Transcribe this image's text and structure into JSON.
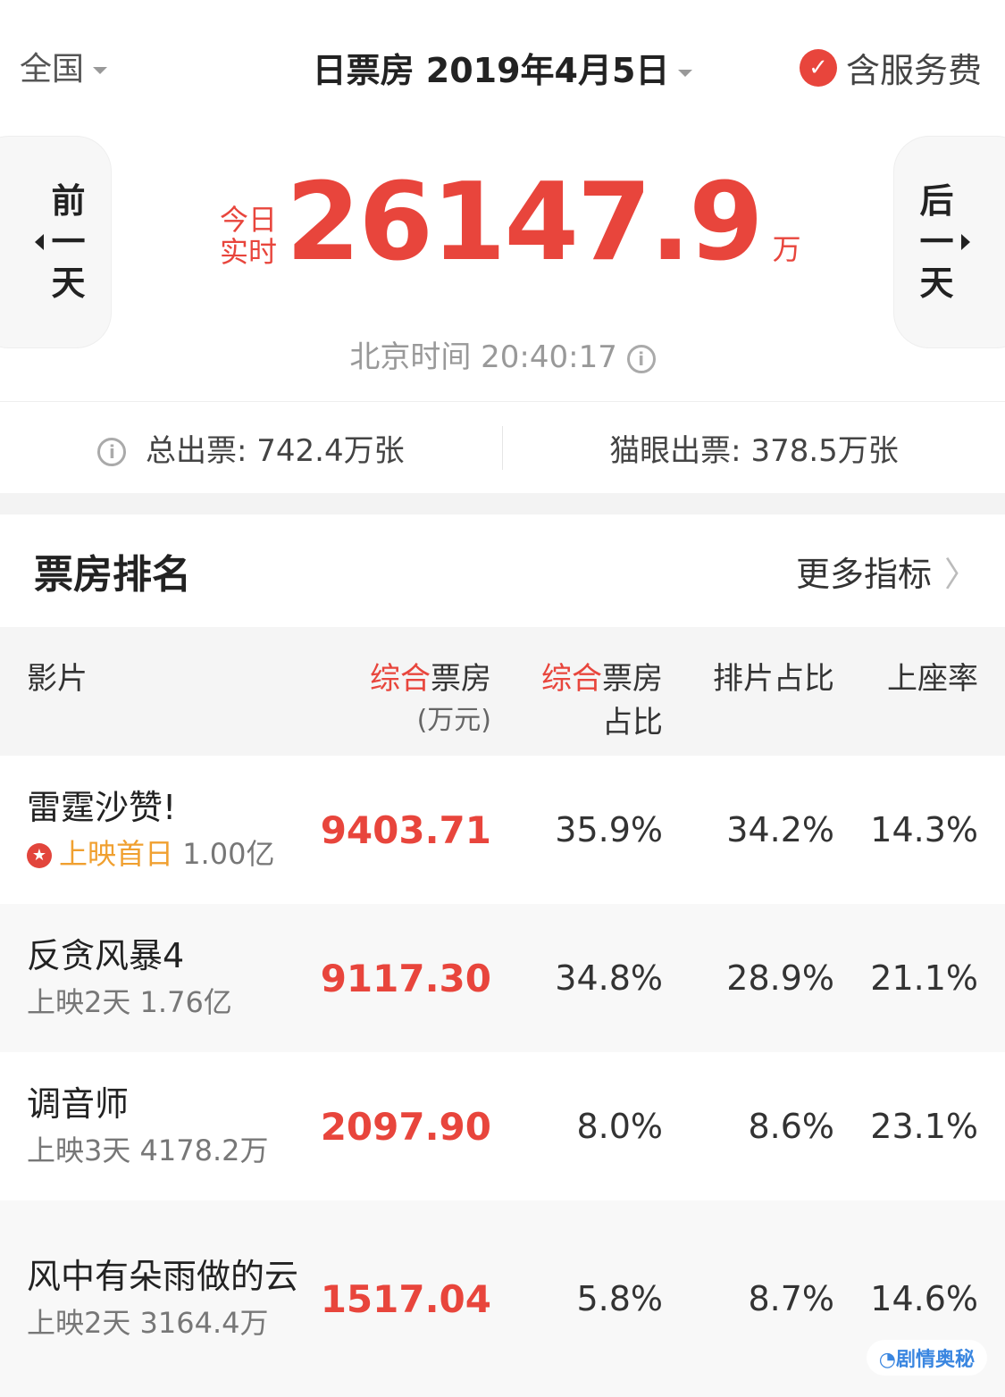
{
  "header": {
    "region": "全国",
    "date_title": "日票房 2019年4月5日",
    "service_fee": "含服务费"
  },
  "hero": {
    "prev": [
      "前",
      "一",
      "天"
    ],
    "next": [
      "后",
      "一",
      "天"
    ],
    "today_1": "今日",
    "today_2": "实时",
    "amount": "26147.9",
    "unit": "万",
    "time": "北京时间 20:40:17"
  },
  "tickets": {
    "total": "总出票: 742.4万张",
    "maoyan": "猫眼出票: 378.5万张"
  },
  "ranking": {
    "title": "票房排名",
    "more": "更多指标",
    "columns": {
      "film": "影片",
      "box_a": "综合",
      "box_b": "票房",
      "box_unit": "(万元)",
      "share_a": "综合",
      "share_b": "票房",
      "share_c": "占比",
      "schedule": "排片占比",
      "seat": "上座率"
    },
    "rows": [
      {
        "name": "雷霆沙赞!",
        "tag": "上映首日",
        "total": "1.00亿",
        "box": "9403.71",
        "share": "35.9%",
        "schedule": "34.2%",
        "seat": "14.3%"
      },
      {
        "name": "反贪风暴4",
        "tag": "上映2天",
        "total": "1.76亿",
        "box": "9117.30",
        "share": "34.8%",
        "schedule": "28.9%",
        "seat": "21.1%"
      },
      {
        "name": "调音师",
        "tag": "上映3天",
        "total": "4178.2万",
        "box": "2097.90",
        "share": "8.0%",
        "schedule": "8.6%",
        "seat": "23.1%"
      },
      {
        "name": "风中有朵雨做的云",
        "tag": "上映2天",
        "total": "3164.4万",
        "box": "1517.04",
        "share": "5.8%",
        "schedule": "8.7%",
        "seat": "14.6%"
      }
    ]
  },
  "watermark": "剧情奥秘",
  "colors": {
    "accent": "#e8453c",
    "highlight": "#f0a030"
  }
}
